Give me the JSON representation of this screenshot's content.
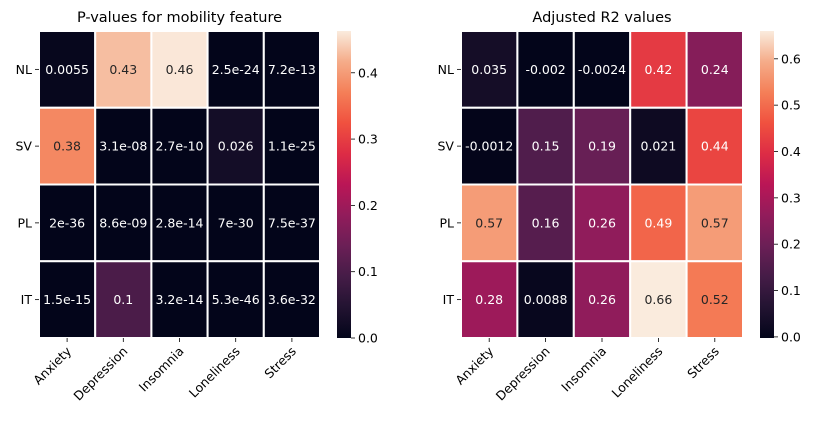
{
  "chart_data": [
    {
      "type": "heatmap",
      "title": "P-values for mobility feature",
      "xlabel": "",
      "ylabel": "",
      "columns": [
        "Anxiety",
        "Depression",
        "Insomnia",
        "Loneliness",
        "Stress"
      ],
      "rows": [
        "NL",
        "SV",
        "PL",
        "IT"
      ],
      "values": [
        [
          0.0055,
          0.43,
          0.46,
          2.5e-24,
          7.2e-13
        ],
        [
          0.38,
          3.1e-08,
          2.7e-10,
          0.026,
          1.1e-25
        ],
        [
          2e-36,
          8.6e-09,
          2.8e-14,
          7e-30,
          7.5e-37
        ],
        [
          1.5e-15,
          0.1,
          3.2e-14,
          5.3e-46,
          3.6e-32
        ]
      ],
      "labels": [
        [
          "0.0055",
          "0.43",
          "0.46",
          "2.5e-24",
          "7.2e-13"
        ],
        [
          "0.38",
          "3.1e-08",
          "2.7e-10",
          "0.026",
          "1.1e-25"
        ],
        [
          "2e-36",
          "8.6e-09",
          "2.8e-14",
          "7e-30",
          "7.5e-37"
        ],
        [
          "1.5e-15",
          "0.1",
          "3.2e-14",
          "5.3e-46",
          "3.6e-32"
        ]
      ],
      "colorbar": {
        "min": 0,
        "max": 0.463,
        "ticks": [
          "0.0",
          "0.1",
          "0.2",
          "0.3",
          "0.4"
        ],
        "tick_values": [
          0,
          0.1,
          0.2,
          0.3,
          0.4
        ]
      },
      "colormap": "rocket",
      "grid": false
    },
    {
      "type": "heatmap",
      "title": "Adjusted R2 values",
      "xlabel": "",
      "ylabel": "",
      "columns": [
        "Anxiety",
        "Depression",
        "Insomnia",
        "Loneliness",
        "Stress"
      ],
      "rows": [
        "NL",
        "SV",
        "PL",
        "IT"
      ],
      "values": [
        [
          0.035,
          -0.002,
          -0.0024,
          0.42,
          0.24
        ],
        [
          -0.0012,
          0.15,
          0.19,
          0.021,
          0.44
        ],
        [
          0.57,
          0.16,
          0.26,
          0.49,
          0.57
        ],
        [
          0.28,
          0.0088,
          0.26,
          0.66,
          0.52
        ]
      ],
      "labels": [
        [
          "0.035",
          "-0.002",
          "-0.0024",
          "0.42",
          "0.24"
        ],
        [
          "-0.0012",
          "0.15",
          "0.19",
          "0.021",
          "0.44"
        ],
        [
          "0.57",
          "0.16",
          "0.26",
          "0.49",
          "0.57"
        ],
        [
          "0.28",
          "0.0088",
          "0.26",
          "0.66",
          "0.52"
        ]
      ],
      "colorbar": {
        "min": -0.0024,
        "max": 0.66,
        "ticks": [
          "0.0",
          "0.1",
          "0.2",
          "0.3",
          "0.4",
          "0.5",
          "0.6"
        ],
        "tick_values": [
          0,
          0.1,
          0.2,
          0.3,
          0.4,
          0.5,
          0.6
        ]
      },
      "colormap": "rocket",
      "grid": false
    }
  ]
}
